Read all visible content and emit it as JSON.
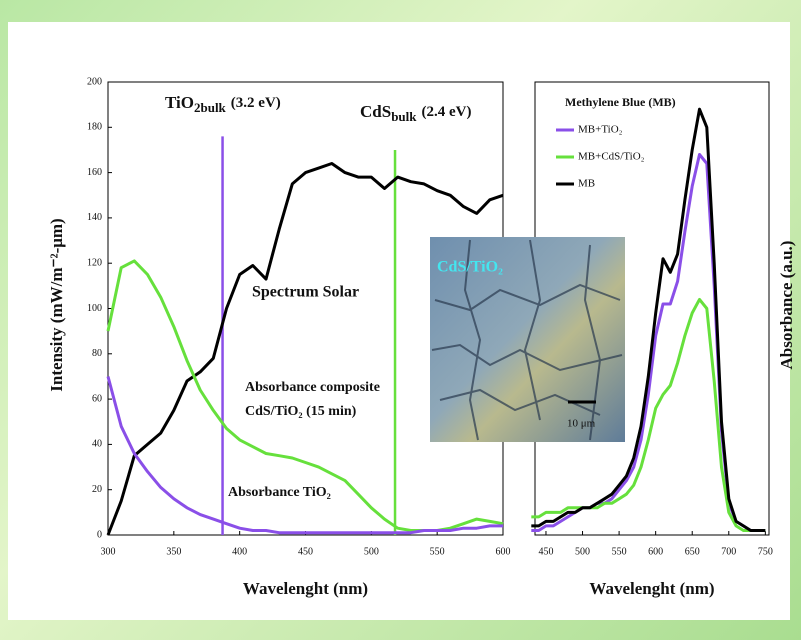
{
  "chart_data": [
    {
      "type": "line",
      "x_label": "Wavelenght (nm)",
      "y_label": "Intensity (mW/m⁻²-μm)",
      "xlim": [
        300,
        600
      ],
      "ylim": [
        0,
        200
      ],
      "xticks": [
        300,
        350,
        400,
        450,
        500,
        550,
        600
      ],
      "yticks": [
        0,
        20,
        40,
        60,
        80,
        100,
        120,
        140,
        160,
        180,
        200
      ],
      "x": [
        300,
        310,
        320,
        330,
        340,
        350,
        360,
        370,
        380,
        390,
        400,
        410,
        420,
        430,
        440,
        450,
        460,
        470,
        480,
        490,
        500,
        510,
        520,
        530,
        540,
        550,
        560,
        570,
        580,
        590,
        600
      ],
      "series": [
        {
          "color": "#000000",
          "values": [
            0,
            15,
            35,
            40,
            45,
            55,
            68,
            72,
            78,
            100,
            115,
            119,
            113,
            135,
            155,
            160,
            162,
            164,
            160,
            158,
            158,
            153,
            158,
            156,
            155,
            152,
            150,
            145,
            142,
            148,
            150
          ]
        },
        {
          "color": "#66e03c",
          "values": [
            90,
            118,
            121,
            115,
            105,
            92,
            77,
            64,
            55,
            47,
            42,
            39,
            36,
            35,
            34,
            32,
            30,
            27,
            24,
            18,
            12,
            7,
            3,
            2,
            2,
            2,
            3,
            5,
            7,
            6,
            5
          ]
        },
        {
          "color": "#8a4fe8",
          "values": [
            70,
            48,
            36,
            28,
            21,
            16,
            12,
            9,
            7,
            5,
            3,
            2,
            2,
            1,
            1,
            1,
            1,
            1,
            1,
            1,
            1,
            1,
            1,
            1,
            2,
            2,
            2,
            3,
            3,
            4,
            4
          ]
        }
      ],
      "annotations": [
        "Spectrum Solar",
        "Absorbance composite",
        "CdS/TiO₂ (15 min)",
        "Absorbance TiO₂"
      ],
      "vlines": [
        {
          "x": 387,
          "top": 176,
          "color": "#8a4fe8",
          "label": "TiO",
          "sub": "2bulk",
          "note": "(3.2 eV)"
        },
        {
          "x": 518,
          "top": 170,
          "color": "#66e03c",
          "label": "CdS",
          "sub": "bulk",
          "note": "(2.4 eV)"
        }
      ]
    },
    {
      "type": "line",
      "x_label": "Wavelenght (nm)",
      "y_label": "Absorbance (a.u.)",
      "legend_title": "Methylene Blue (MB)",
      "legend": "upper-left",
      "xlim": [
        435,
        755
      ],
      "ylim": [
        0,
        1
      ],
      "xticks": [
        450,
        500,
        550,
        600,
        650,
        700,
        750
      ],
      "x": [
        430,
        440,
        450,
        460,
        470,
        480,
        490,
        500,
        510,
        520,
        530,
        540,
        550,
        560,
        570,
        580,
        590,
        600,
        610,
        620,
        630,
        640,
        650,
        660,
        670,
        680,
        690,
        700,
        710,
        720,
        730,
        740,
        750
      ],
      "series": [
        {
          "name": "MB+TiO₂",
          "color": "#8a4fe8",
          "values": [
            0.01,
            0.01,
            0.02,
            0.02,
            0.03,
            0.04,
            0.05,
            0.06,
            0.06,
            0.07,
            0.07,
            0.08,
            0.1,
            0.12,
            0.15,
            0.21,
            0.31,
            0.44,
            0.51,
            0.51,
            0.56,
            0.67,
            0.77,
            0.84,
            0.82,
            0.55,
            0.23,
            0.07,
            0.03,
            0.02,
            0.01,
            0.01,
            0.01
          ]
        },
        {
          "name": "MB+CdS/TiO₂",
          "color": "#66e03c",
          "values": [
            0.04,
            0.04,
            0.05,
            0.05,
            0.05,
            0.06,
            0.06,
            0.06,
            0.06,
            0.06,
            0.07,
            0.07,
            0.08,
            0.09,
            0.11,
            0.15,
            0.21,
            0.28,
            0.31,
            0.33,
            0.38,
            0.44,
            0.49,
            0.52,
            0.5,
            0.34,
            0.15,
            0.05,
            0.02,
            0.01,
            0.01,
            0.01,
            0.01
          ]
        },
        {
          "name": "MB",
          "color": "#000000",
          "values": [
            0.02,
            0.02,
            0.03,
            0.03,
            0.04,
            0.05,
            0.05,
            0.06,
            0.06,
            0.07,
            0.08,
            0.09,
            0.11,
            0.13,
            0.17,
            0.24,
            0.35,
            0.49,
            0.61,
            0.58,
            0.62,
            0.74,
            0.85,
            0.94,
            0.9,
            0.6,
            0.25,
            0.08,
            0.03,
            0.02,
            0.01,
            0.01,
            0.01
          ]
        }
      ]
    }
  ],
  "inset": {
    "label": "CdS/TiO₂",
    "scale_bar": "10 μm"
  }
}
